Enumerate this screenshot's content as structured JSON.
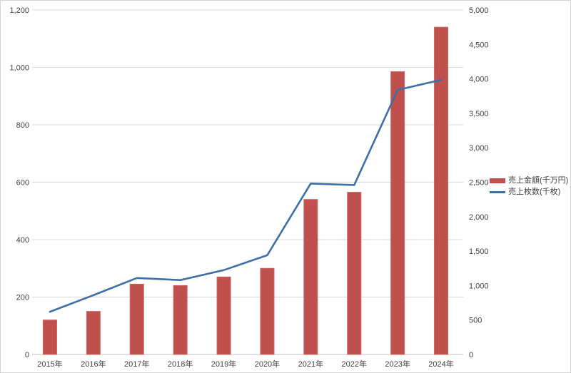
{
  "chart_data": {
    "type": "bar+line",
    "title": "",
    "categories": [
      "2015年",
      "2016年",
      "2017年",
      "2018年",
      "2019年",
      "2020年",
      "2021年",
      "2022年",
      "2023年",
      "2024年"
    ],
    "series": [
      {
        "name": "売上金額(千万円)",
        "type": "bar",
        "axis": "left",
        "color": "#c0504d",
        "border_color": "#cd6561",
        "values": [
          120,
          150,
          245,
          240,
          270,
          300,
          540,
          565,
          985,
          1140
        ]
      },
      {
        "name": "売上枚数(千枚)",
        "type": "line",
        "axis": "right",
        "color": "#3e6fa6",
        "values": [
          620,
          860,
          1110,
          1080,
          1225,
          1440,
          2480,
          2460,
          3840,
          3985
        ]
      }
    ],
    "left_axis": {
      "min": 0,
      "max": 1200,
      "step": 200,
      "tick_labels": [
        "0",
        "200",
        "400",
        "600",
        "800",
        "1,000",
        "1,200"
      ]
    },
    "right_axis": {
      "min": 0,
      "max": 5000,
      "step": 500,
      "tick_labels": [
        "0",
        "500",
        "1,000",
        "1,500",
        "2,000",
        "2,500",
        "3,000",
        "3,500",
        "4,000",
        "4,500",
        "5,000"
      ]
    },
    "grid": true,
    "gridline_color": "#d9d9d9",
    "axis_line_color": "#bfbfbf",
    "tick_text_color": "#404040",
    "legend_position": "right"
  },
  "legend": {
    "items": [
      {
        "label": "売上金額(千万円)"
      },
      {
        "label": "売上枚数(千枚)"
      }
    ]
  }
}
